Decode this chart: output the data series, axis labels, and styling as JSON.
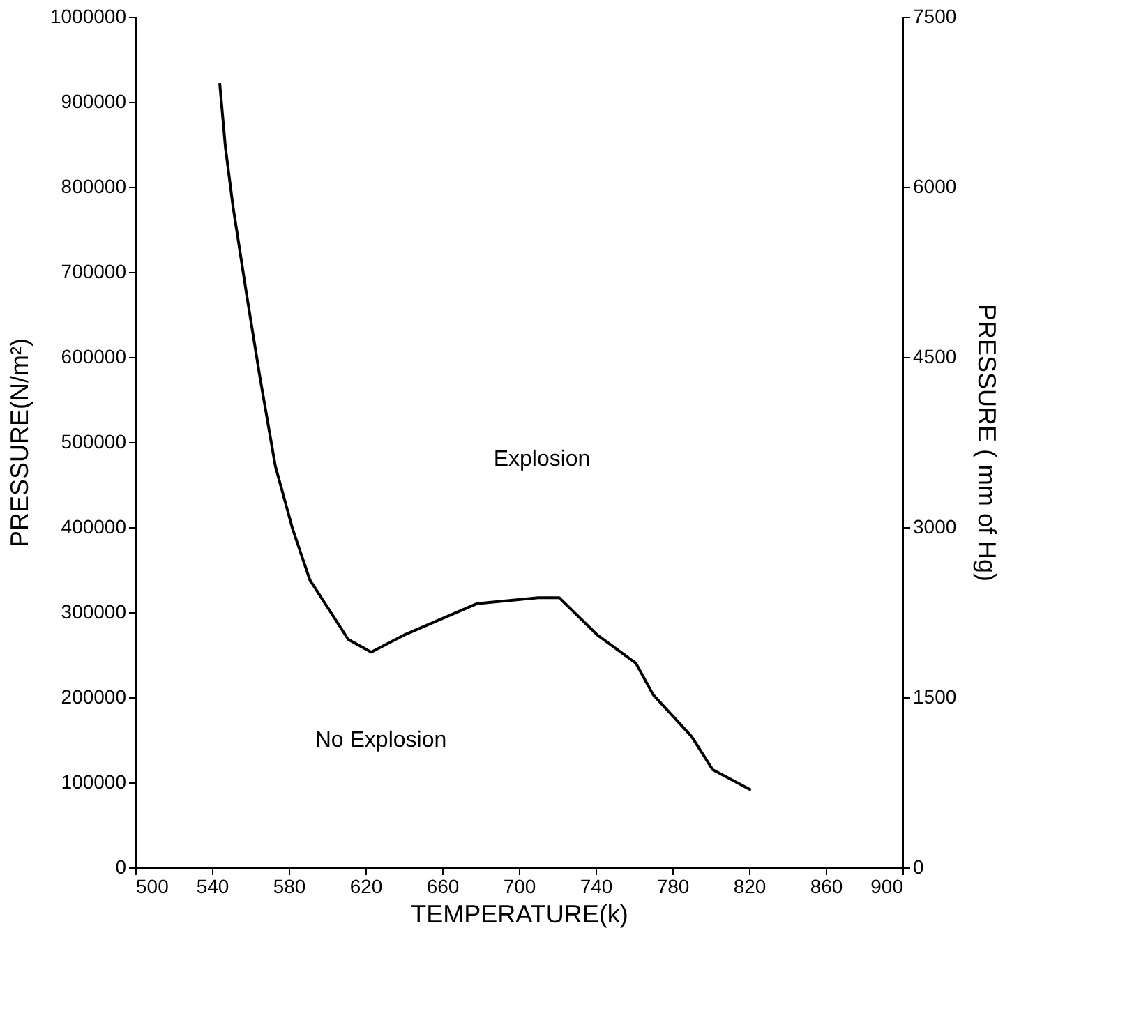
{
  "chart_data": {
    "type": "line",
    "xlabel": "TEMPERATURE(k)",
    "ylabel": "PRESSURE(N/m²)",
    "y2label": "PRESSURE ( mm of Hg)",
    "annotations": [
      "Explosion",
      "No Explosion"
    ],
    "x": [
      544,
      547,
      551,
      558,
      565,
      573,
      582,
      591,
      611,
      623,
      640,
      678,
      710,
      721,
      741,
      761,
      770,
      790,
      801,
      821
    ],
    "series": [
      {
        "color": "#000000",
        "values": [
          922000,
          846000,
          776000,
          674000,
          576000,
          472000,
          398000,
          338000,
          268000,
          253000,
          273000,
          310000,
          317000,
          317000,
          273000,
          240000,
          203000,
          154000,
          115000,
          91000
        ]
      }
    ],
    "xlim": [
      500,
      900
    ],
    "xticks": [
      500,
      540,
      580,
      620,
      660,
      700,
      740,
      780,
      820,
      860,
      900
    ],
    "ylim": [
      0,
      1000000
    ],
    "yticks": [
      0,
      100000,
      200000,
      300000,
      400000,
      500000,
      600000,
      700000,
      800000,
      900000,
      1000000
    ],
    "y2lim": [
      0,
      7500
    ],
    "y2ticks": [
      0,
      1500,
      3000,
      4500,
      6000,
      7500
    ],
    "grid": false,
    "marker": "none",
    "line_style": "solid"
  }
}
